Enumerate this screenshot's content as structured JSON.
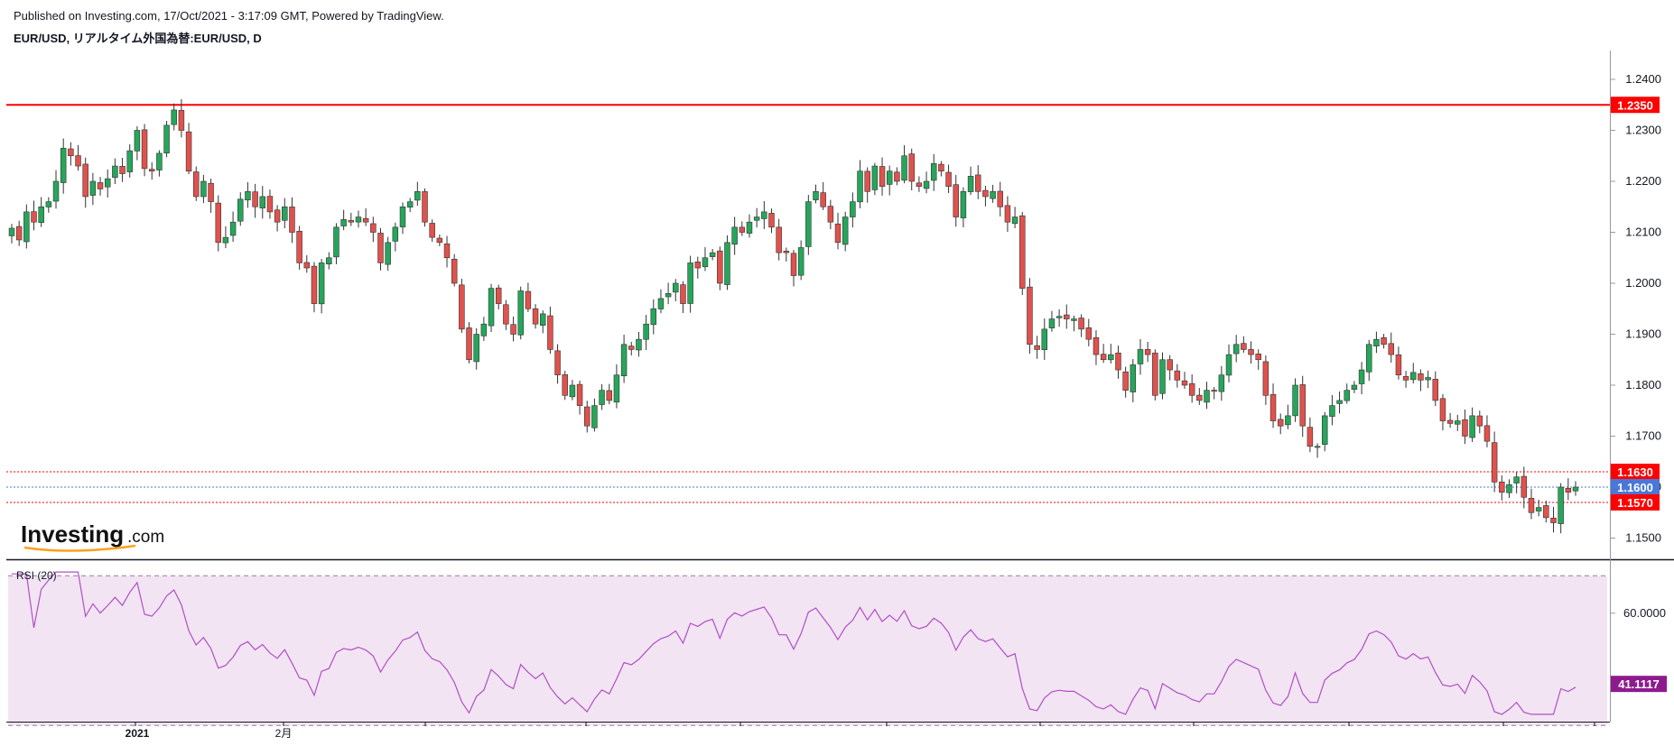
{
  "header": {
    "published": "Published on Investing.com, 17/Oct/2021 - 3:17:09 GMT, Powered by TradingView.",
    "title": "EUR/USD, リアルタイム外国為替:EUR/USD, D"
  },
  "logo": {
    "main": "Investing",
    "suffix": ".com"
  },
  "colors": {
    "up": "#26a65b",
    "down": "#e0524d",
    "resistance": "#ff0000",
    "current": "#4a78d8",
    "rsi_line": "#b04fc8",
    "rsi_band": "#f2e4f2",
    "rsi_badge": "#8d1b8e"
  },
  "chart_data": [
    {
      "type": "candlestick",
      "title": "EUR/USD, リアルタイム外国為替:EUR/USD, D",
      "ylim": [
        1.144,
        1.246
      ],
      "y_ticks": [
        "1.2400",
        "1.2300",
        "1.2200",
        "1.2100",
        "1.2000",
        "1.1900",
        "1.1800",
        "1.1700",
        "1.1600",
        "1.1500"
      ],
      "x_tick_labels": [
        "2021",
        "2月"
      ],
      "closes": [
        1.2108,
        1.2085,
        1.214,
        1.212,
        1.215,
        1.216,
        1.22,
        1.2265,
        1.225,
        1.223,
        1.217,
        1.22,
        1.2185,
        1.2205,
        1.223,
        1.2215,
        1.226,
        1.23,
        1.2225,
        1.222,
        1.2255,
        1.231,
        1.234,
        1.23,
        1.222,
        1.217,
        1.22,
        1.216,
        1.208,
        1.209,
        1.212,
        1.2165,
        1.218,
        1.215,
        1.217,
        1.214,
        1.212,
        1.215,
        1.21,
        1.204,
        1.203,
        1.196,
        1.204,
        1.205,
        1.211,
        1.2125,
        1.212,
        1.213,
        1.212,
        1.21,
        1.204,
        1.208,
        1.211,
        1.215,
        1.216,
        1.218,
        1.212,
        1.209,
        1.208,
        1.205,
        1.2,
        1.191,
        1.185,
        1.19,
        1.192,
        1.199,
        1.196,
        1.192,
        1.19,
        1.1985,
        1.195,
        1.192,
        1.194,
        1.187,
        1.182,
        1.178,
        1.18,
        1.176,
        1.172,
        1.176,
        1.179,
        1.177,
        1.182,
        1.188,
        1.187,
        1.189,
        1.192,
        1.195,
        1.197,
        1.198,
        1.2,
        1.196,
        1.204,
        1.203,
        1.205,
        1.206,
        1.2,
        1.208,
        1.211,
        1.21,
        1.212,
        1.213,
        1.214,
        1.211,
        1.206,
        1.206,
        1.2015,
        1.207,
        1.216,
        1.218,
        1.215,
        1.212,
        1.208,
        1.213,
        1.216,
        1.222,
        1.218,
        1.223,
        1.219,
        1.222,
        1.22,
        1.225,
        1.22,
        1.219,
        1.22,
        1.2235,
        1.222,
        1.219,
        1.213,
        1.218,
        1.221,
        1.218,
        1.217,
        1.218,
        1.215,
        1.212,
        1.213,
        1.199,
        1.188,
        1.187,
        1.191,
        1.193,
        1.1935,
        1.193,
        1.193,
        1.191,
        1.189,
        1.186,
        1.185,
        1.186,
        1.183,
        1.179,
        1.184,
        1.187,
        1.186,
        1.178,
        1.185,
        1.183,
        1.181,
        1.18,
        1.178,
        1.177,
        1.179,
        1.179,
        1.182,
        1.186,
        1.188,
        1.187,
        1.186,
        1.185,
        1.178,
        1.173,
        1.172,
        1.174,
        1.18,
        1.172,
        1.168,
        1.168,
        1.174,
        1.176,
        1.177,
        1.179,
        1.18,
        1.183,
        1.188,
        1.189,
        1.188,
        1.186,
        1.182,
        1.181,
        1.1825,
        1.181,
        1.1815,
        1.177,
        1.173,
        1.1725,
        1.173,
        1.17,
        1.174,
        1.172,
        1.169,
        1.161,
        1.159,
        1.1605,
        1.162,
        1.158,
        1.155,
        1.156,
        1.154,
        1.153,
        1.16,
        1.159,
        1.16
      ],
      "annotations": {
        "resistance": {
          "value": 1.235,
          "label": "1.2350"
        },
        "range_upper": {
          "value": 1.163,
          "label": "1.1630"
        },
        "range_lower": {
          "value": 1.157,
          "label": "1.1570"
        },
        "last_price": {
          "value": 1.16,
          "label": "1.1600"
        }
      }
    },
    {
      "type": "line",
      "title": "RSI (20)",
      "ylim": [
        32,
        72
      ],
      "y_ticks": [
        "60.0000"
      ],
      "bands": [
        30,
        70
      ],
      "last_value": {
        "value": 41.1117,
        "label": "41.1117"
      }
    }
  ]
}
